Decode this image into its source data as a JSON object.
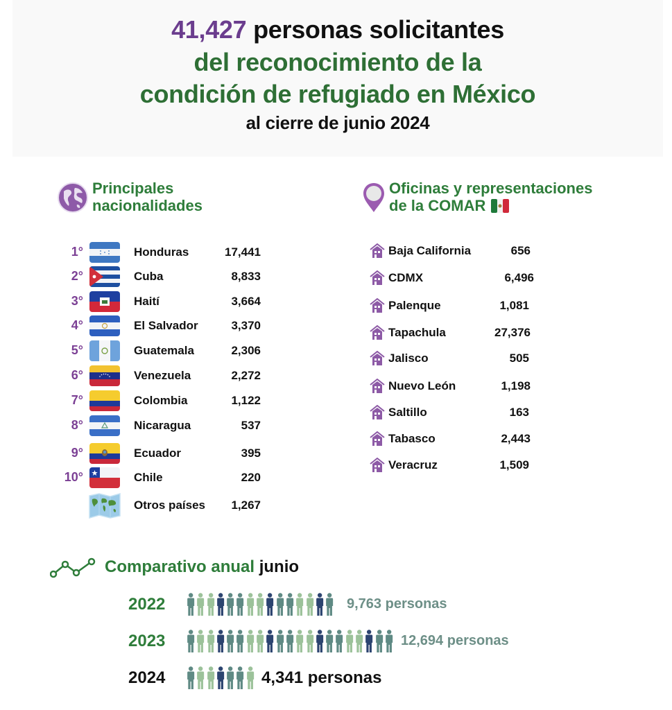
{
  "header": {
    "total": "41,427",
    "line1_rest": "personas solicitantes",
    "line2": "del reconocimiento de la",
    "line3": "condición de refugiado en México",
    "line4_pre": "al cierre de",
    "line4_month": "junio",
    "line4_year": "2024"
  },
  "nationalities": {
    "title_line1": "Principales",
    "title_line2": "nacionalidades",
    "icon": "globe-icon",
    "items": [
      {
        "rank": "1°",
        "country": "Honduras",
        "value": "17,441",
        "flag": "honduras"
      },
      {
        "rank": "2°",
        "country": "Cuba",
        "value": "8,833",
        "flag": "cuba"
      },
      {
        "rank": "3°",
        "country": "Haití",
        "value": "3,664",
        "flag": "haiti"
      },
      {
        "rank": "4°",
        "country": "El Salvador",
        "value": "3,370",
        "flag": "el-salvador"
      },
      {
        "rank": "5°",
        "country": "Guatemala",
        "value": "2,306",
        "flag": "guatemala"
      },
      {
        "rank": "6°",
        "country": "Venezuela",
        "value": "2,272",
        "flag": "venezuela"
      },
      {
        "rank": "7°",
        "country": "Colombia",
        "value": "1,122",
        "flag": "colombia"
      },
      {
        "rank": "8°",
        "country": "Nicaragua",
        "value": "537",
        "flag": "nicaragua"
      },
      {
        "rank": "9°",
        "country": "Ecuador",
        "value": "395",
        "flag": "ecuador"
      },
      {
        "rank": "10°",
        "country": "Chile",
        "value": "220",
        "flag": "chile"
      },
      {
        "rank": "",
        "country": "Otros países",
        "value": "1,267",
        "flag": "world-map"
      }
    ]
  },
  "offices": {
    "title_line1": "Oficinas y representaciones",
    "title_line2": "de la COMAR",
    "icon": "location-pin-icon",
    "items": [
      {
        "name": "Baja California",
        "value": "656"
      },
      {
        "name": "CDMX",
        "value": "6,496"
      },
      {
        "name": "Palenque",
        "value": "1,081"
      },
      {
        "name": "Tapachula",
        "value": "27,376"
      },
      {
        "name": "Jalisco",
        "value": "505"
      },
      {
        "name": "Nuevo León",
        "value": "1,198"
      },
      {
        "name": "Saltillo",
        "value": "163"
      },
      {
        "name": "Tabasco",
        "value": "2,443"
      },
      {
        "name": "Veracruz",
        "value": "1,509"
      }
    ]
  },
  "comparison": {
    "title": "Comparativo anual",
    "title_month": "junio",
    "icon": "trend-line-icon",
    "years": [
      {
        "year": "2022",
        "text": "9,763 personas",
        "icons": 15
      },
      {
        "year": "2023",
        "text": "12,694 personas",
        "icons": 21
      },
      {
        "year": "2024",
        "text": "4,341 personas",
        "icons": 7
      }
    ]
  },
  "colors": {
    "purple": "#7b3f94",
    "green": "#2e7d3a",
    "person_teal": "#5f8a84",
    "person_light": "#9cc29a",
    "person_navy": "#2c4470"
  }
}
